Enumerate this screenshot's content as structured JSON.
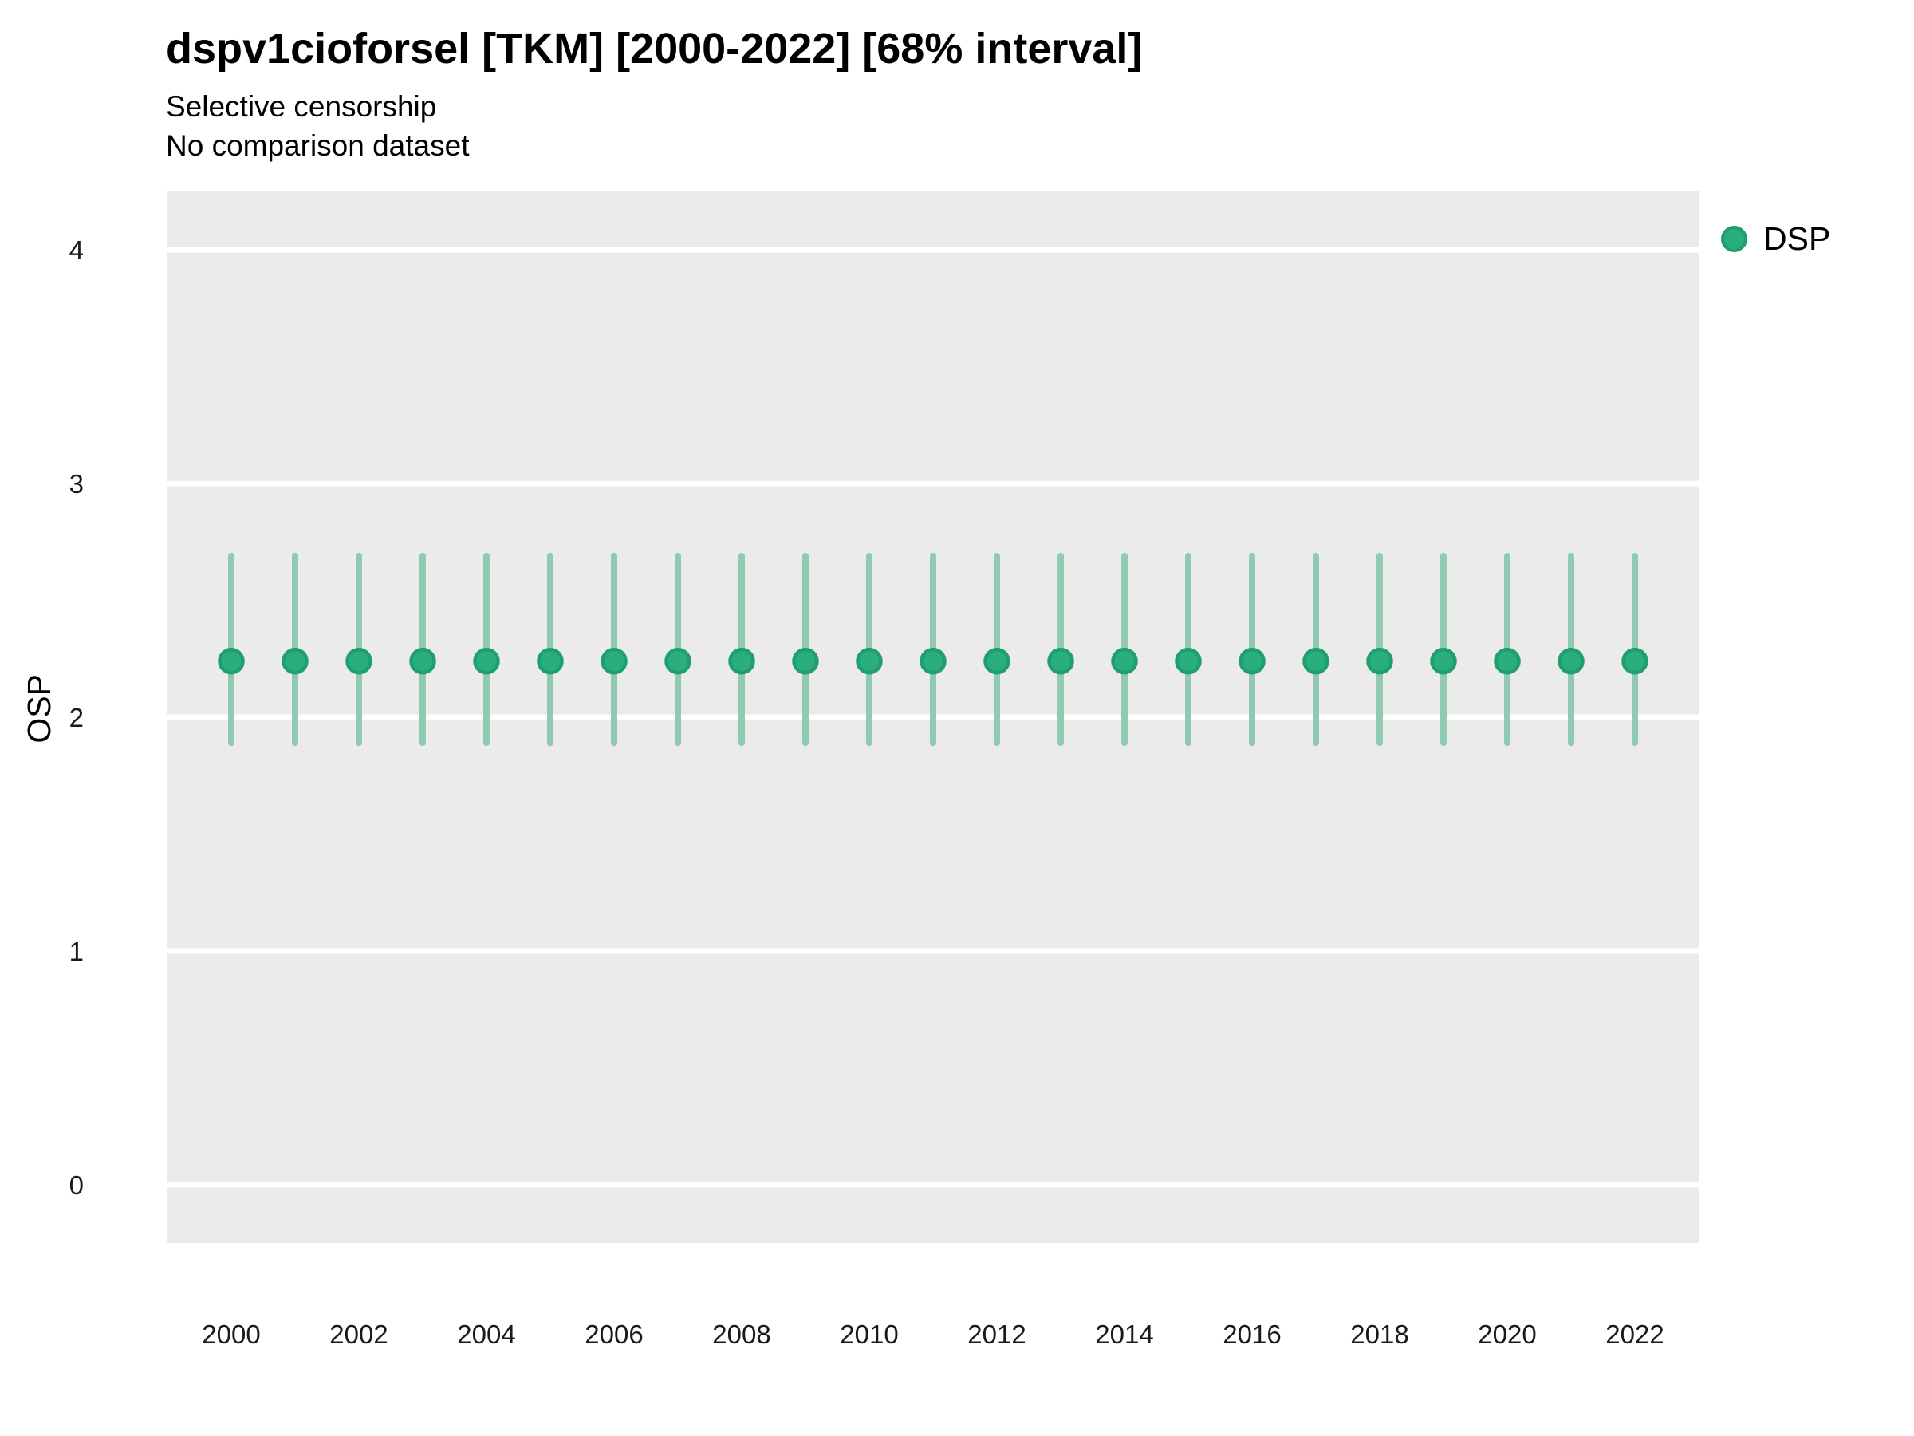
{
  "title": "dspv1cioforsel [TKM] [2000-2022] [68% interval]",
  "subtitle_line1": "Selective censorship",
  "subtitle_line2": "No comparison dataset",
  "y_axis_title": "OSP",
  "legend": {
    "position": "right-top",
    "items": [
      {
        "label": "DSP"
      }
    ]
  },
  "colors": {
    "panel_bg": "#EBEBEB",
    "gridline": "#FFFFFF",
    "errorbar": "#90CBB1",
    "point_fill": "#2BAE7E",
    "point_stroke": "#1F9E6E",
    "tick_text": "#1A1A1A",
    "title_text": "#000000"
  },
  "chart_data": {
    "type": "scatter",
    "subtype": "pointrange",
    "title": "dspv1cioforsel [TKM] [2000-2022] [68% interval]",
    "subtitle": [
      "Selective censorship",
      "No comparison dataset"
    ],
    "xlabel": "",
    "ylabel": "OSP",
    "x": [
      2000,
      2001,
      2002,
      2003,
      2004,
      2005,
      2006,
      2007,
      2008,
      2009,
      2010,
      2011,
      2012,
      2013,
      2014,
      2015,
      2016,
      2017,
      2018,
      2019,
      2020,
      2021,
      2022
    ],
    "series": [
      {
        "name": "DSP",
        "values": [
          2.24,
          2.24,
          2.24,
          2.24,
          2.24,
          2.24,
          2.24,
          2.24,
          2.24,
          2.24,
          2.24,
          2.24,
          2.24,
          2.24,
          2.24,
          2.24,
          2.24,
          2.24,
          2.24,
          2.24,
          2.24,
          2.24,
          2.24
        ],
        "lower": [
          1.89,
          1.89,
          1.89,
          1.89,
          1.89,
          1.89,
          1.89,
          1.89,
          1.89,
          1.89,
          1.89,
          1.89,
          1.89,
          1.89,
          1.89,
          1.89,
          1.89,
          1.89,
          1.89,
          1.89,
          1.89,
          1.89,
          1.89
        ],
        "upper": [
          2.69,
          2.69,
          2.69,
          2.69,
          2.69,
          2.69,
          2.69,
          2.69,
          2.69,
          2.69,
          2.69,
          2.69,
          2.69,
          2.69,
          2.69,
          2.69,
          2.69,
          2.69,
          2.69,
          2.69,
          2.69,
          2.69,
          2.69
        ],
        "interval": "68%"
      }
    ],
    "ylim": [
      -0.25,
      4.25
    ],
    "yticks": [
      0,
      1,
      2,
      3,
      4
    ],
    "xticks": [
      2000,
      2002,
      2004,
      2006,
      2008,
      2010,
      2012,
      2014,
      2016,
      2018,
      2020,
      2022
    ],
    "grid": "horizontal-major-only-white",
    "legend_position": "right-top",
    "legend_entries": [
      "DSP"
    ]
  }
}
